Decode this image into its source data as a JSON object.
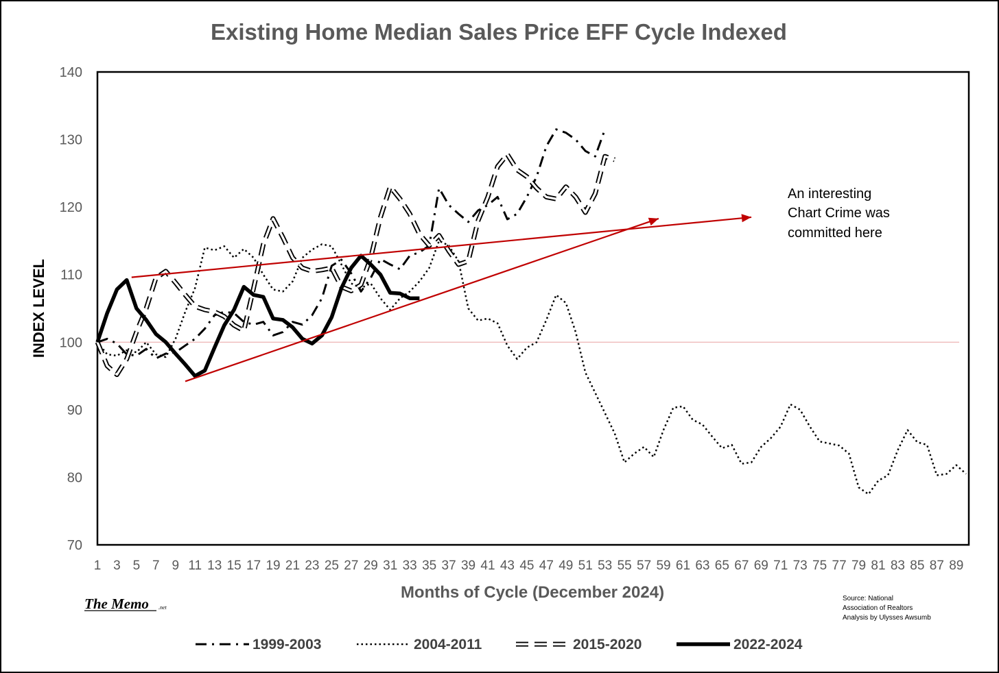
{
  "chart_data": {
    "type": "line",
    "title": "Existing Home Median Sales Price EFF Cycle Indexed",
    "xlabel": "Months of Cycle (December 2024)",
    "ylabel": "INDEX LEVEL",
    "xlim": [
      1,
      90
    ],
    "ylim": [
      70,
      140
    ],
    "y_ticks": [
      70,
      80,
      90,
      100,
      110,
      120,
      130,
      140
    ],
    "x_tick_labels": [
      "1",
      "3",
      "5",
      "7",
      "9",
      "11",
      "13",
      "15",
      "17",
      "19",
      "21",
      "23",
      "25",
      "27",
      "29",
      "31",
      "33",
      "35",
      "37",
      "39",
      "41",
      "43",
      "45",
      "47",
      "49",
      "51",
      "53",
      "55",
      "57",
      "59",
      "61",
      "63",
      "65",
      "67",
      "69",
      "71",
      "73",
      "75",
      "77",
      "79",
      "81",
      "83",
      "85",
      "87",
      "89"
    ],
    "reference_line": {
      "y": 100,
      "color": "#e8a0a0"
    },
    "legend_position": "bottom",
    "grid": false,
    "series": [
      {
        "name": "1999-2003",
        "style": "dashdot",
        "color": "#000000",
        "points": [
          [
            1,
            100
          ],
          [
            2,
            100.5
          ],
          [
            3,
            99.8
          ],
          [
            4,
            98.2
          ],
          [
            5,
            98
          ],
          [
            6,
            99
          ],
          [
            7,
            97.6
          ],
          [
            8,
            98.3
          ],
          [
            9,
            98.5
          ],
          [
            10,
            99.5
          ],
          [
            11,
            100.5
          ],
          [
            12,
            102
          ],
          [
            13,
            104
          ],
          [
            14,
            104.5
          ],
          [
            15,
            104.3
          ],
          [
            16,
            103
          ],
          [
            17,
            102.6
          ],
          [
            18,
            103
          ],
          [
            19,
            101
          ],
          [
            20,
            101.5
          ],
          [
            21,
            103
          ],
          [
            22,
            102.6
          ],
          [
            23,
            104
          ],
          [
            24,
            106.5
          ],
          [
            25,
            111.3
          ],
          [
            26,
            112.2
          ],
          [
            27,
            110.2
          ],
          [
            28,
            107.5
          ],
          [
            29,
            109.5
          ],
          [
            30,
            112.3
          ],
          [
            31,
            111.5
          ],
          [
            32,
            110.8
          ],
          [
            33,
            112.8
          ],
          [
            34,
            113.3
          ],
          [
            35,
            114.3
          ],
          [
            36,
            122.8
          ],
          [
            37,
            120.3
          ],
          [
            38,
            119
          ],
          [
            39,
            117.8
          ],
          [
            40,
            119.5
          ],
          [
            41,
            120.3
          ],
          [
            42,
            121.5
          ],
          [
            43,
            118.2
          ],
          [
            44,
            119
          ],
          [
            45,
            121.5
          ],
          [
            46,
            124.5
          ],
          [
            47,
            129
          ],
          [
            48,
            131.5
          ],
          [
            49,
            131
          ],
          [
            50,
            130
          ],
          [
            51,
            128.3
          ],
          [
            52,
            127.5
          ],
          [
            53,
            131.5
          ]
        ]
      },
      {
        "name": "2004-2011",
        "style": "dotted",
        "color": "#000000",
        "points": [
          [
            1,
            100
          ],
          [
            2,
            98.2
          ],
          [
            3,
            98
          ],
          [
            4,
            98.8
          ],
          [
            5,
            98.5
          ],
          [
            6,
            100
          ],
          [
            7,
            98.2
          ],
          [
            8,
            97.8
          ],
          [
            9,
            100.5
          ],
          [
            10,
            104.5
          ],
          [
            11,
            108
          ],
          [
            12,
            114
          ],
          [
            13,
            113.6
          ],
          [
            14,
            114.2
          ],
          [
            15,
            112.5
          ],
          [
            16,
            113.8
          ],
          [
            17,
            112.5
          ],
          [
            18,
            110
          ],
          [
            19,
            107.8
          ],
          [
            20,
            107.5
          ],
          [
            21,
            109
          ],
          [
            22,
            112.5
          ],
          [
            23,
            113.7
          ],
          [
            24,
            114.5
          ],
          [
            25,
            114.2
          ],
          [
            26,
            111.5
          ],
          [
            27,
            108.7
          ],
          [
            28,
            108
          ],
          [
            29,
            108.7
          ],
          [
            30,
            106.5
          ],
          [
            31,
            104.8
          ],
          [
            32,
            106.5
          ],
          [
            33,
            107.5
          ],
          [
            34,
            109
          ],
          [
            35,
            111
          ],
          [
            36,
            115
          ],
          [
            37,
            114.3
          ],
          [
            38,
            112
          ],
          [
            39,
            105
          ],
          [
            40,
            103.2
          ],
          [
            41,
            103.5
          ],
          [
            42,
            102.8
          ],
          [
            43,
            99.5
          ],
          [
            44,
            97.5
          ],
          [
            45,
            99.2
          ],
          [
            46,
            100
          ],
          [
            47,
            103.3
          ],
          [
            48,
            107
          ],
          [
            49,
            105.8
          ],
          [
            50,
            101.5
          ],
          [
            51,
            95.5
          ],
          [
            52,
            92.5
          ],
          [
            53,
            89.5
          ],
          [
            54,
            86.5
          ],
          [
            55,
            82.2
          ],
          [
            56,
            83.5
          ],
          [
            57,
            84.5
          ],
          [
            58,
            83
          ],
          [
            59,
            87
          ],
          [
            60,
            90.3
          ],
          [
            61,
            90.5
          ],
          [
            62,
            88.5
          ],
          [
            63,
            87.8
          ],
          [
            64,
            86
          ],
          [
            65,
            84.3
          ],
          [
            66,
            84.8
          ],
          [
            67,
            82
          ],
          [
            68,
            82.2
          ],
          [
            69,
            84.5
          ],
          [
            70,
            85.8
          ],
          [
            71,
            87.5
          ],
          [
            72,
            90.8
          ],
          [
            73,
            90
          ],
          [
            74,
            87.5
          ],
          [
            75,
            85.3
          ],
          [
            76,
            85
          ],
          [
            77,
            84.7
          ],
          [
            78,
            83.5
          ],
          [
            79,
            78.5
          ],
          [
            80,
            77.5
          ],
          [
            81,
            79.5
          ],
          [
            82,
            80.3
          ],
          [
            83,
            84
          ],
          [
            84,
            87
          ],
          [
            85,
            85.2
          ],
          [
            86,
            84.8
          ],
          [
            87,
            80.3
          ],
          [
            88,
            80.5
          ],
          [
            89,
            81.8
          ],
          [
            90,
            80.5
          ]
        ]
      },
      {
        "name": "2015-2020",
        "style": "dashed-double",
        "color": "#000000",
        "points": [
          [
            1,
            100
          ],
          [
            2,
            96.5
          ],
          [
            3,
            95.2
          ],
          [
            4,
            97.5
          ],
          [
            5,
            101.5
          ],
          [
            6,
            105
          ],
          [
            7,
            109.5
          ],
          [
            8,
            110.5
          ],
          [
            9,
            108.8
          ],
          [
            10,
            107
          ],
          [
            11,
            105.3
          ],
          [
            12,
            104.8
          ],
          [
            13,
            104.5
          ],
          [
            14,
            103.8
          ],
          [
            15,
            102.5
          ],
          [
            16,
            101.7
          ],
          [
            17,
            108
          ],
          [
            18,
            114.5
          ],
          [
            19,
            118.3
          ],
          [
            20,
            115.5
          ],
          [
            21,
            112.5
          ],
          [
            22,
            111
          ],
          [
            23,
            110.5
          ],
          [
            24,
            110.7
          ],
          [
            25,
            111
          ],
          [
            26,
            108.2
          ],
          [
            27,
            107.6
          ],
          [
            28,
            108.5
          ],
          [
            29,
            112.5
          ],
          [
            30,
            118.5
          ],
          [
            31,
            123
          ],
          [
            32,
            121.2
          ],
          [
            33,
            119
          ],
          [
            34,
            116
          ],
          [
            35,
            114.3
          ],
          [
            36,
            115.8
          ],
          [
            37,
            113.5
          ],
          [
            38,
            111.5
          ],
          [
            39,
            112
          ],
          [
            40,
            118
          ],
          [
            41,
            121.5
          ],
          [
            42,
            126
          ],
          [
            43,
            127.8
          ],
          [
            44,
            125.5
          ],
          [
            45,
            124.5
          ],
          [
            46,
            122.8
          ],
          [
            47,
            121.5
          ],
          [
            48,
            121.2
          ],
          [
            49,
            123
          ],
          [
            50,
            121.5
          ],
          [
            51,
            119.2
          ],
          [
            52,
            122
          ],
          [
            53,
            127.5
          ],
          [
            54,
            127
          ]
        ]
      },
      {
        "name": "2022-2024",
        "style": "solid-thick",
        "color": "#000000",
        "points": [
          [
            1,
            100
          ],
          [
            2,
            104.3
          ],
          [
            3,
            107.8
          ],
          [
            4,
            109.2
          ],
          [
            5,
            105
          ],
          [
            6,
            103.3
          ],
          [
            7,
            101.2
          ],
          [
            8,
            100
          ],
          [
            9,
            98.3
          ],
          [
            10,
            96.7
          ],
          [
            11,
            95
          ],
          [
            12,
            95.8
          ],
          [
            13,
            99.2
          ],
          [
            14,
            102.5
          ],
          [
            15,
            104.8
          ],
          [
            16,
            108.2
          ],
          [
            17,
            107
          ],
          [
            18,
            106.7
          ],
          [
            19,
            103.5
          ],
          [
            20,
            103.3
          ],
          [
            21,
            102.2
          ],
          [
            22,
            100.5
          ],
          [
            23,
            99.8
          ],
          [
            24,
            101
          ],
          [
            25,
            103.7
          ],
          [
            26,
            108
          ],
          [
            27,
            111
          ],
          [
            28,
            112.8
          ],
          [
            29,
            111.5
          ],
          [
            30,
            110
          ],
          [
            31,
            107.3
          ],
          [
            32,
            107.2
          ],
          [
            33,
            106.5
          ],
          [
            34,
            106.5
          ]
        ]
      }
    ],
    "annotation": {
      "lines": [
        "An interesting",
        "Chart Crime was",
        "committed here"
      ],
      "color": "#000000"
    },
    "overlay_arrows": {
      "color": "#c00000",
      "segments": [
        {
          "from": [
            4.5,
            109.6
          ],
          "to": [
            68,
            118.5
          ],
          "arrow": true
        },
        {
          "from": [
            10,
            94.2
          ],
          "to": [
            58.5,
            118.3
          ],
          "arrow": true
        }
      ]
    }
  },
  "source_note": [
    "Source: National",
    "Association of Realtors",
    "Analysis by Ulysses Awsumb"
  ],
  "brand": {
    "name": "The Memo",
    "suffix": ".net"
  }
}
